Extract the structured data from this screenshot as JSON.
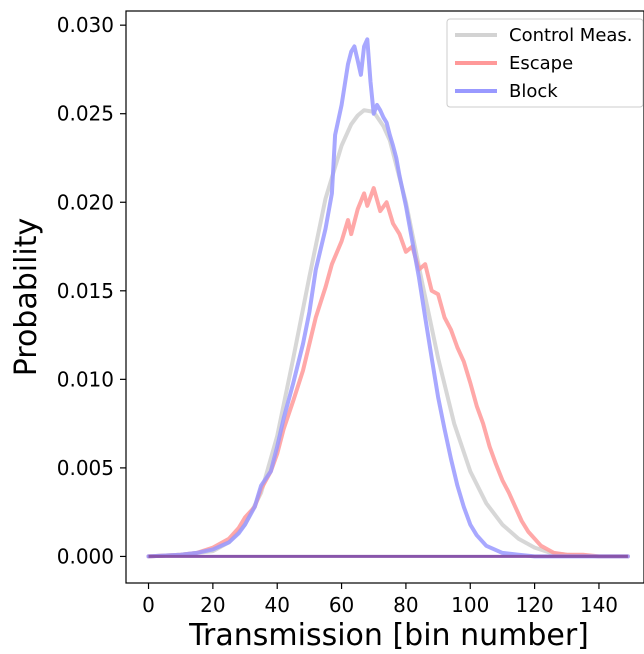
{
  "chart_data": {
    "type": "line",
    "title": "",
    "xlabel": "Transmission [bin number]",
    "ylabel": "Probability",
    "xlim": [
      -7,
      154
    ],
    "ylim": [
      -0.0015,
      0.0308
    ],
    "xticks": [
      0,
      20,
      40,
      60,
      80,
      100,
      120,
      140
    ],
    "xtick_labels": [
      "0",
      "20",
      "40",
      "60",
      "80",
      "100",
      "120",
      "140"
    ],
    "yticks": [
      0.0,
      0.005,
      0.01,
      0.015,
      0.02,
      0.025,
      0.03
    ],
    "ytick_labels": [
      "0.000",
      "0.005",
      "0.010",
      "0.015",
      "0.020",
      "0.025",
      "0.030"
    ],
    "grid": false,
    "legend_position": "top-right",
    "series": [
      {
        "name": "Control Meas.",
        "color": "#d3d3d3",
        "x": [
          0,
          10,
          20,
          25,
          30,
          35,
          40,
          45,
          50,
          55,
          60,
          63,
          65,
          67,
          70,
          73,
          75,
          80,
          85,
          90,
          95,
          100,
          105,
          110,
          115,
          120,
          125,
          130,
          140,
          149
        ],
        "y": [
          0.0,
          0.0001,
          0.0003,
          0.0008,
          0.0018,
          0.0036,
          0.0068,
          0.0112,
          0.0158,
          0.0202,
          0.0232,
          0.0244,
          0.0249,
          0.0252,
          0.0251,
          0.0243,
          0.0235,
          0.02,
          0.0155,
          0.0112,
          0.0075,
          0.0048,
          0.003,
          0.0018,
          0.001,
          0.0005,
          0.0002,
          0.0001,
          0.0,
          0.0
        ]
      },
      {
        "name": "Escape",
        "color": "#ff9999",
        "x": [
          0,
          10,
          15,
          20,
          25,
          28,
          30,
          33,
          35,
          38,
          40,
          42,
          45,
          48,
          50,
          52,
          55,
          57,
          60,
          62,
          63,
          65,
          67,
          68,
          70,
          72,
          74,
          76,
          78,
          80,
          82,
          84,
          86,
          88,
          90,
          92,
          94,
          96,
          98,
          100,
          102,
          104,
          106,
          108,
          110,
          112,
          114,
          116,
          118,
          120,
          122,
          124,
          126,
          130,
          135,
          140,
          149
        ],
        "y": [
          0.0,
          0.0001,
          0.0002,
          0.0005,
          0.001,
          0.0016,
          0.0022,
          0.0028,
          0.0038,
          0.0048,
          0.0058,
          0.0072,
          0.0088,
          0.0105,
          0.012,
          0.0135,
          0.0152,
          0.0165,
          0.0178,
          0.019,
          0.0182,
          0.0196,
          0.0205,
          0.0198,
          0.0208,
          0.0195,
          0.02,
          0.0188,
          0.0182,
          0.0172,
          0.0175,
          0.0162,
          0.0165,
          0.015,
          0.0148,
          0.0135,
          0.0128,
          0.0118,
          0.011,
          0.0098,
          0.0085,
          0.0075,
          0.0062,
          0.0052,
          0.0043,
          0.0036,
          0.0028,
          0.002,
          0.0014,
          0.001,
          0.0006,
          0.0004,
          0.0002,
          0.0001,
          0.0001,
          0.0,
          0.0
        ]
      },
      {
        "name": "Block",
        "color": "#9999ff",
        "x": [
          0,
          10,
          15,
          20,
          25,
          28,
          30,
          33,
          35,
          38,
          40,
          42,
          45,
          48,
          50,
          52,
          55,
          57,
          58,
          60,
          62,
          63,
          64,
          65,
          66,
          67,
          68,
          69,
          70,
          71,
          72,
          73,
          74,
          75,
          76,
          77,
          78,
          80,
          82,
          84,
          86,
          88,
          90,
          92,
          94,
          96,
          98,
          100,
          102,
          105,
          110,
          115,
          120,
          130,
          140,
          149
        ],
        "y": [
          0.0,
          0.0001,
          0.0002,
          0.0004,
          0.0008,
          0.0013,
          0.0018,
          0.0028,
          0.004,
          0.0048,
          0.0062,
          0.0078,
          0.0098,
          0.012,
          0.0138,
          0.0162,
          0.0185,
          0.0205,
          0.0238,
          0.0255,
          0.0278,
          0.0285,
          0.0288,
          0.028,
          0.0272,
          0.0288,
          0.0292,
          0.0268,
          0.025,
          0.0255,
          0.0252,
          0.0248,
          0.0245,
          0.0238,
          0.0232,
          0.0225,
          0.0215,
          0.0198,
          0.0178,
          0.0158,
          0.0135,
          0.0112,
          0.009,
          0.0072,
          0.0055,
          0.004,
          0.0028,
          0.0018,
          0.0012,
          0.0006,
          0.0002,
          0.0001,
          0.0,
          0.0,
          0.0,
          0.0
        ]
      }
    ],
    "overlap_color": "#8855aa"
  }
}
